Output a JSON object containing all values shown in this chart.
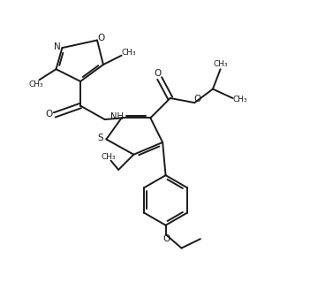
{
  "bg_color": "#ffffff",
  "line_color": "#1a1a1a",
  "line_width": 1.4,
  "figsize": [
    3.51,
    3.46
  ],
  "dpi": 100,
  "xlim": [
    0,
    10
  ],
  "ylim": [
    0,
    10
  ]
}
